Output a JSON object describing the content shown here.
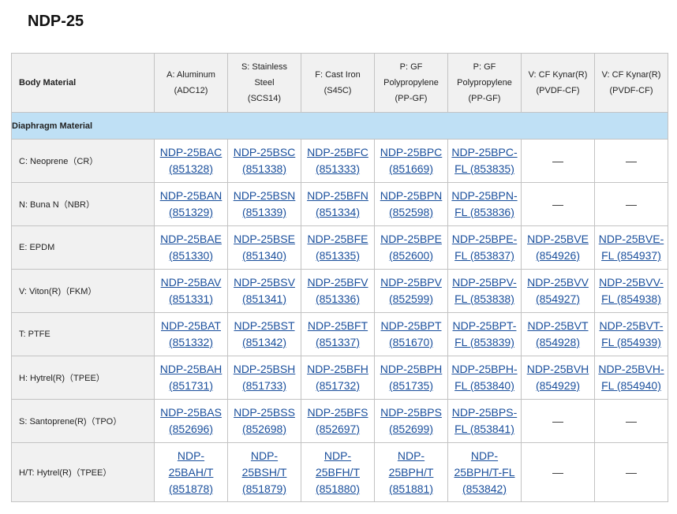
{
  "title": "NDP-25",
  "corner": "Body Material",
  "columns": [
    [
      "A: Aluminum",
      "(ADC12)"
    ],
    [
      "S: Stainless",
      "Steel",
      "(SCS14)"
    ],
    [
      "F: Cast Iron",
      "(S45C)"
    ],
    [
      "P: GF",
      "Polypropylene",
      "(PP-GF)"
    ],
    [
      "P: GF",
      "Polypropylene",
      "(PP-GF)"
    ],
    [
      "V: CF Kynar(R)",
      "(PVDF-CF)"
    ],
    [
      "V: CF Kynar(R)",
      "(PVDF-CF)"
    ]
  ],
  "subheader": "Diaphragm Material",
  "rows": [
    {
      "material": "C: Neoprene（CR）",
      "tall": false,
      "cells": [
        [
          "NDP-25BAC",
          "(851328)"
        ],
        [
          "NDP-25BSC",
          "(851338)"
        ],
        [
          "NDP-25BFC",
          "(851333)"
        ],
        [
          "NDP-25BPC",
          "(851669)"
        ],
        [
          "NDP-25BPC-",
          "FL (853835)"
        ],
        "—",
        "—"
      ]
    },
    {
      "material": "N: Buna N（NBR）",
      "tall": false,
      "cells": [
        [
          "NDP-25BAN",
          "(851329)"
        ],
        [
          "NDP-25BSN",
          "(851339)"
        ],
        [
          "NDP-25BFN",
          "(851334)"
        ],
        [
          "NDP-25BPN",
          "(852598)"
        ],
        [
          "NDP-25BPN-",
          "FL (853836)"
        ],
        "—",
        "—"
      ]
    },
    {
      "material": "E: EPDM",
      "tall": false,
      "cells": [
        [
          "NDP-25BAE",
          "(851330)"
        ],
        [
          "NDP-25BSE",
          "(851340)"
        ],
        [
          "NDP-25BFE",
          "(851335)"
        ],
        [
          "NDP-25BPE",
          "(852600)"
        ],
        [
          "NDP-25BPE-",
          "FL (853837)"
        ],
        [
          "NDP-25BVE",
          "(854926)"
        ],
        [
          "NDP-25BVE-",
          "FL (854937)"
        ]
      ]
    },
    {
      "material": "V: Viton(R)（FKM）",
      "tall": false,
      "cells": [
        [
          "NDP-25BAV",
          "(851331)"
        ],
        [
          "NDP-25BSV",
          "(851341)"
        ],
        [
          "NDP-25BFV",
          "(851336)"
        ],
        [
          "NDP-25BPV",
          "(852599)"
        ],
        [
          "NDP-25BPV-",
          "FL (853838)"
        ],
        [
          "NDP-25BVV",
          "(854927)"
        ],
        [
          "NDP-25BVV-",
          "FL (854938)"
        ]
      ]
    },
    {
      "material": "T: PTFE",
      "tall": false,
      "cells": [
        [
          "NDP-25BAT",
          "(851332)"
        ],
        [
          "NDP-25BST",
          "(851342)"
        ],
        [
          "NDP-25BFT",
          "(851337)"
        ],
        [
          "NDP-25BPT",
          "(851670)"
        ],
        [
          "NDP-25BPT-",
          "FL (853839)"
        ],
        [
          "NDP-25BVT",
          "(854928)"
        ],
        [
          "NDP-25BVT-",
          "FL (854939)"
        ]
      ]
    },
    {
      "material": "H: Hytrel(R)（TPEE）",
      "tall": false,
      "cells": [
        [
          "NDP-25BAH",
          "(851731)"
        ],
        [
          "NDP-25BSH",
          "(851733)"
        ],
        [
          "NDP-25BFH",
          "(851732)"
        ],
        [
          "NDP-25BPH",
          "(851735)"
        ],
        [
          "NDP-25BPH-",
          "FL (853840)"
        ],
        [
          "NDP-25BVH",
          "(854929)"
        ],
        [
          "NDP-25BVH-",
          "FL (854940)"
        ]
      ]
    },
    {
      "material": "S: Santoprene(R)（TPO）",
      "tall": false,
      "cells": [
        [
          "NDP-25BAS",
          "(852696)"
        ],
        [
          "NDP-25BSS",
          "(852698)"
        ],
        [
          "NDP-25BFS",
          "(852697)"
        ],
        [
          "NDP-25BPS",
          "(852699)"
        ],
        [
          "NDP-25BPS-",
          "FL (853841)"
        ],
        "—",
        "—"
      ]
    },
    {
      "material": "H/T: Hytrel(R)（TPEE）",
      "tall": true,
      "cells": [
        [
          "NDP-",
          "25BAH/T",
          "(851878)"
        ],
        [
          "NDP-",
          "25BSH/T",
          "(851879)"
        ],
        [
          "NDP-",
          "25BFH/T",
          "(851880)"
        ],
        [
          "NDP-",
          "25BPH/T",
          "(851881)"
        ],
        [
          "NDP-",
          "25BPH/T-FL",
          "(853842)"
        ],
        "—",
        "—"
      ]
    }
  ]
}
